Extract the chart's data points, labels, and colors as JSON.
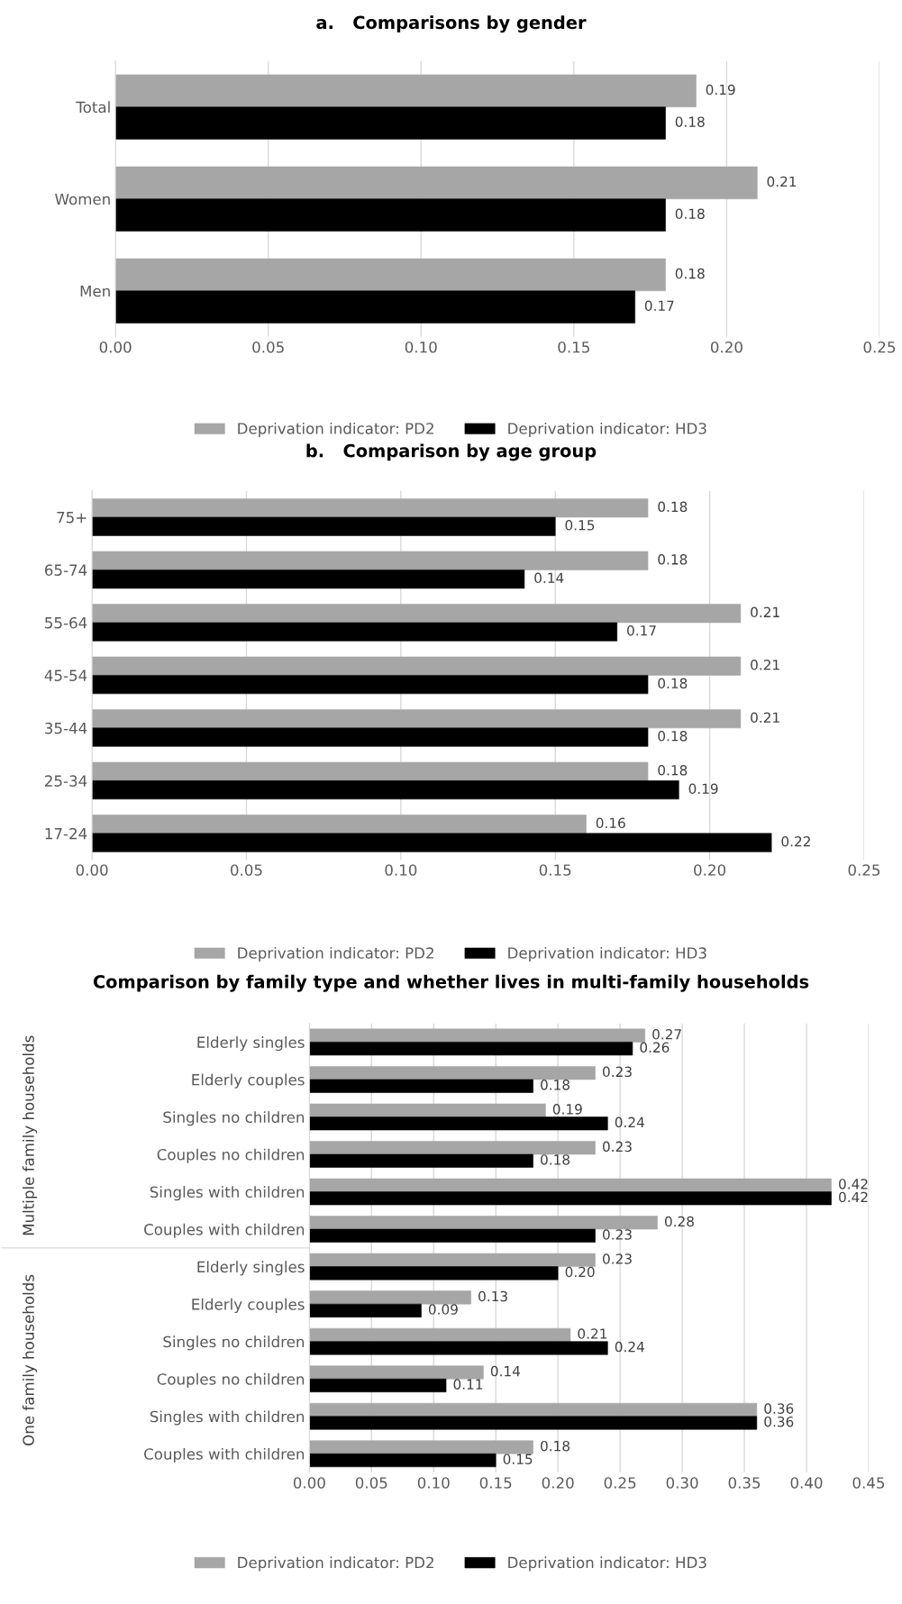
{
  "chart_data": [
    {
      "type": "bar",
      "orientation": "horizontal",
      "title": "a.   Comparisons by gender",
      "categories": [
        "Total",
        "Women",
        "Men"
      ],
      "series": [
        {
          "name": "Deprivation indicator: PD2",
          "color": "#a6a6a6",
          "values": [
            0.19,
            0.21,
            0.18
          ]
        },
        {
          "name": "Deprivation indicator: HD3",
          "color": "#000000",
          "values": [
            0.18,
            0.18,
            0.17
          ]
        }
      ],
      "xlim": [
        0,
        0.25
      ],
      "xticks": [
        {
          "value": 0,
          "label": "0.00"
        },
        {
          "value": 0.05,
          "label": "0.05"
        },
        {
          "value": 0.1,
          "label": "0.10"
        },
        {
          "value": 0.15,
          "label": "0.15"
        },
        {
          "value": 0.2,
          "label": "0.20"
        },
        {
          "value": 0.25,
          "label": "0.25"
        }
      ],
      "grid": "x",
      "legend": "bottom",
      "data_labels": true
    },
    {
      "type": "bar",
      "orientation": "horizontal",
      "title": "b.   Comparison by age group",
      "categories": [
        "75+",
        "65-74",
        "55-64",
        "45-54",
        "35-44",
        "25-34",
        "17-24"
      ],
      "series": [
        {
          "name": "Deprivation indicator: PD2",
          "color": "#a6a6a6",
          "values": [
            0.18,
            0.18,
            0.21,
            0.21,
            0.21,
            0.18,
            0.16
          ]
        },
        {
          "name": "Deprivation indicator: HD3",
          "color": "#000000",
          "values": [
            0.15,
            0.14,
            0.17,
            0.18,
            0.18,
            0.19,
            0.22
          ]
        }
      ],
      "xlim": [
        0,
        0.25
      ],
      "xticks": [
        {
          "value": 0,
          "label": "0.00"
        },
        {
          "value": 0.05,
          "label": "0.05"
        },
        {
          "value": 0.1,
          "label": "0.10"
        },
        {
          "value": 0.15,
          "label": "0.15"
        },
        {
          "value": 0.2,
          "label": "0.20"
        },
        {
          "value": 0.25,
          "label": "0.25"
        }
      ],
      "grid": "x",
      "legend": "bottom",
      "data_labels": true
    },
    {
      "type": "bar",
      "orientation": "horizontal",
      "title": "Comparison by family type and whether lives in multi-family households",
      "categories": [
        "Elderly singles",
        "Elderly couples",
        "Singles no children",
        "Couples no children",
        "Singles with children",
        "Couples with children",
        "Elderly singles",
        "Elderly couples",
        "Singles no children",
        "Couples no children",
        "Singles with children",
        "Couples with children"
      ],
      "annotations": [
        "Multiple family households",
        "One family households"
      ],
      "series": [
        {
          "name": "Deprivation indicator: PD2",
          "color": "#a6a6a6",
          "values": [
            0.27,
            0.23,
            0.19,
            0.23,
            0.42,
            0.28,
            0.23,
            0.13,
            0.21,
            0.14,
            0.36,
            0.18
          ],
          "value_labels": [
            "0.27",
            "0.23",
            "0.19",
            "0.23",
            "0.42",
            "0.28",
            "0.23",
            "0.13",
            "0.21",
            "0.14",
            "0.36",
            "0.18"
          ]
        },
        {
          "name": "Deprivation indicator: HD3",
          "color": "#000000",
          "values": [
            0.26,
            0.18,
            0.24,
            0.18,
            0.42,
            0.23,
            0.2,
            0.09,
            0.24,
            0.11,
            0.36,
            0.15
          ],
          "value_labels": [
            "0.26",
            "0.18",
            "0.24",
            "0.18",
            "0.42",
            "0.23",
            "0.20",
            "0.09",
            "0.24",
            "0.11",
            "0.36",
            "0.15"
          ]
        }
      ],
      "xlim": [
        0,
        0.45
      ],
      "xticks": [
        {
          "value": 0,
          "label": "0.00"
        },
        {
          "value": 0.05,
          "label": "0.05"
        },
        {
          "value": 0.1,
          "label": "0.10"
        },
        {
          "value": 0.15,
          "label": "0.15"
        },
        {
          "value": 0.2,
          "label": "0.20"
        },
        {
          "value": 0.25,
          "label": "0.25"
        },
        {
          "value": 0.3,
          "label": "0.30"
        },
        {
          "value": 0.35,
          "label": "0.35"
        },
        {
          "value": 0.4,
          "label": "0.40"
        },
        {
          "value": 0.45,
          "label": "0.45"
        }
      ],
      "grid": "x",
      "legend": "bottom"
    }
  ]
}
